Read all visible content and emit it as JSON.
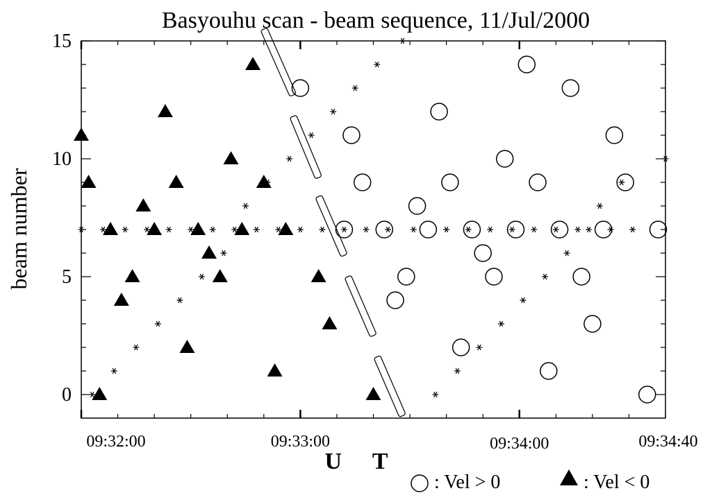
{
  "chart_data": {
    "type": "scatter",
    "title": "Basyouhu scan - beam sequence, 11/Jul/2000",
    "xlabel": "U T",
    "ylabel": "beam number",
    "ylim": [
      -1,
      15
    ],
    "xlim": [
      "09:32:00",
      "09:34:40"
    ],
    "yticks": [
      0,
      5,
      10,
      15
    ],
    "xticklabels": [
      "09:32:00",
      "09:33:00",
      "09:34:00",
      "09:34:40"
    ],
    "legend": {
      "positive": {
        "marker": "circle",
        "label": ": Vel > 0"
      },
      "negative": {
        "marker": "filled-triangle",
        "label": ": Vel < 0"
      }
    },
    "series": [
      {
        "kind": "sample",
        "marker": "asterisk",
        "points": [
          [
            "09:32:00",
            7
          ],
          [
            "09:32:03",
            0
          ],
          [
            "09:32:06",
            7
          ],
          [
            "09:32:09",
            1
          ],
          [
            "09:32:12",
            7
          ],
          [
            "09:32:15",
            2
          ],
          [
            "09:32:18",
            7
          ],
          [
            "09:32:21",
            3
          ],
          [
            "09:32:24",
            7
          ],
          [
            "09:32:27",
            4
          ],
          [
            "09:32:30",
            7
          ],
          [
            "09:32:33",
            5
          ],
          [
            "09:32:36",
            7
          ],
          [
            "09:32:39",
            6
          ],
          [
            "09:32:42",
            7
          ],
          [
            "09:32:45",
            8
          ],
          [
            "09:32:48",
            7
          ],
          [
            "09:32:51",
            9
          ],
          [
            "09:32:54",
            7
          ],
          [
            "09:32:57",
            10
          ],
          [
            "09:33:00",
            7
          ],
          [
            "09:33:03",
            11
          ],
          [
            "09:33:06",
            7
          ],
          [
            "09:33:09",
            12
          ],
          [
            "09:33:12",
            7
          ],
          [
            "09:33:15",
            13
          ],
          [
            "09:33:18",
            7
          ],
          [
            "09:33:21",
            14
          ],
          [
            "09:33:24",
            7
          ],
          [
            "09:33:28",
            15
          ],
          [
            "09:33:31",
            7
          ],
          [
            "09:33:37",
            0
          ],
          [
            "09:33:40",
            7
          ],
          [
            "09:33:43",
            1
          ],
          [
            "09:33:46",
            7
          ],
          [
            "09:33:49",
            2
          ],
          [
            "09:33:52",
            7
          ],
          [
            "09:33:55",
            3
          ],
          [
            "09:33:58",
            7
          ],
          [
            "09:34:01",
            4
          ],
          [
            "09:34:04",
            7
          ],
          [
            "09:34:07",
            5
          ],
          [
            "09:34:10",
            7
          ],
          [
            "09:34:13",
            6
          ],
          [
            "09:34:16",
            7
          ],
          [
            "09:34:19",
            7
          ],
          [
            "09:34:22",
            8
          ],
          [
            "09:34:25",
            7
          ],
          [
            "09:34:28",
            9
          ],
          [
            "09:34:31",
            7
          ],
          [
            "09:34:40",
            10
          ]
        ]
      },
      {
        "kind": "Vel < 0",
        "marker": "filled-triangle",
        "points": [
          [
            "09:32:00",
            11
          ],
          [
            "09:32:02",
            9
          ],
          [
            "09:32:05",
            0
          ],
          [
            "09:32:08",
            7
          ],
          [
            "09:32:11",
            4
          ],
          [
            "09:32:14",
            5
          ],
          [
            "09:32:17",
            8
          ],
          [
            "09:32:20",
            7
          ],
          [
            "09:32:23",
            12
          ],
          [
            "09:32:26",
            9
          ],
          [
            "09:32:29",
            2
          ],
          [
            "09:32:32",
            7
          ],
          [
            "09:32:35",
            6
          ],
          [
            "09:32:38",
            5
          ],
          [
            "09:32:41",
            10
          ],
          [
            "09:32:44",
            7
          ],
          [
            "09:32:47",
            14
          ],
          [
            "09:32:50",
            9
          ],
          [
            "09:32:53",
            1
          ],
          [
            "09:32:56",
            7
          ],
          [
            "09:33:05",
            5
          ],
          [
            "09:33:08",
            3
          ],
          [
            "09:33:20",
            0
          ]
        ]
      },
      {
        "kind": "Vel > 0",
        "marker": "circle",
        "points": [
          [
            "09:33:00",
            13
          ],
          [
            "09:33:12",
            7
          ],
          [
            "09:33:14",
            11
          ],
          [
            "09:33:17",
            9
          ],
          [
            "09:33:23",
            7
          ],
          [
            "09:33:26",
            4
          ],
          [
            "09:33:29",
            5
          ],
          [
            "09:33:32",
            8
          ],
          [
            "09:33:35",
            7
          ],
          [
            "09:33:38",
            12
          ],
          [
            "09:33:41",
            9
          ],
          [
            "09:33:44",
            2
          ],
          [
            "09:33:47",
            7
          ],
          [
            "09:33:50",
            6
          ],
          [
            "09:33:53",
            5
          ],
          [
            "09:33:56",
            10
          ],
          [
            "09:33:59",
            7
          ],
          [
            "09:34:02",
            14
          ],
          [
            "09:34:05",
            9
          ],
          [
            "09:34:08",
            1
          ],
          [
            "09:34:11",
            7
          ],
          [
            "09:34:14",
            13
          ],
          [
            "09:34:17",
            5
          ],
          [
            "09:34:20",
            3
          ],
          [
            "09:34:23",
            7
          ],
          [
            "09:34:26",
            11
          ],
          [
            "09:34:29",
            9
          ],
          [
            "09:34:35",
            0
          ],
          [
            "09:34:38",
            7
          ]
        ]
      }
    ],
    "annotations": [
      {
        "shape": "slanted-bar",
        "from": [
          "09:32:50",
          15.5
        ],
        "to": [
          "09:32:58",
          12.7
        ]
      },
      {
        "shape": "slanted-bar",
        "from": [
          "09:32:58",
          11.8
        ],
        "to": [
          "09:33:05",
          9.2
        ]
      },
      {
        "shape": "slanted-bar",
        "from": [
          "09:33:05",
          8.4
        ],
        "to": [
          "09:33:12",
          5.9
        ]
      },
      {
        "shape": "slanted-bar",
        "from": [
          "09:33:13",
          5.0
        ],
        "to": [
          "09:33:20",
          2.5
        ]
      },
      {
        "shape": "slanted-bar",
        "from": [
          "09:33:21",
          1.6
        ],
        "to": [
          "09:33:28",
          -0.9
        ]
      }
    ]
  }
}
